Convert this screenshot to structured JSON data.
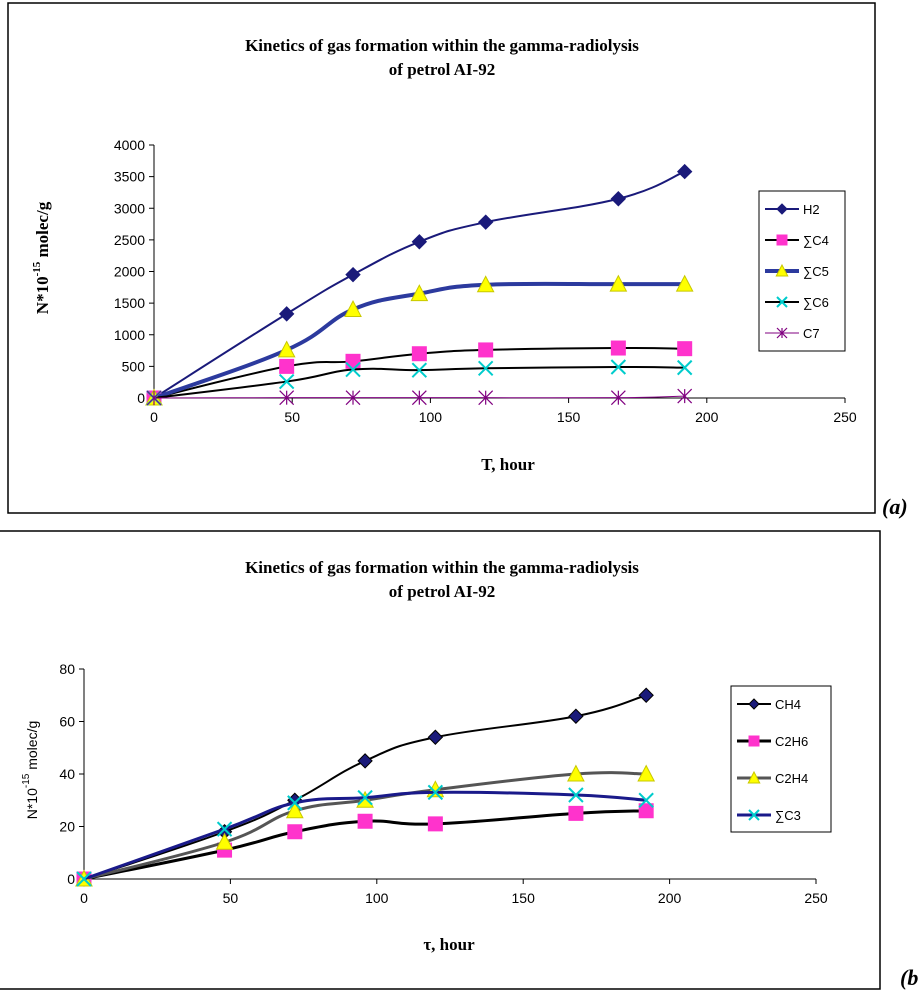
{
  "chart_data": [
    {
      "type": "line",
      "panel_tag": "(a)",
      "title_lines": [
        "Kinetics of gas formation within the gamma-radiolysis",
        "of petrol AI-92"
      ],
      "xlabel": "T, hour",
      "ylabel_prefix": "N*10",
      "ylabel_exp": "-15",
      "ylabel_suffix": " molec/g",
      "xlim": [
        0,
        250
      ],
      "ylim": [
        0,
        4000
      ],
      "xticks": [
        0,
        50,
        100,
        150,
        200,
        250
      ],
      "yticks": [
        0,
        500,
        1000,
        1500,
        2000,
        2500,
        3000,
        3500,
        4000
      ],
      "grid": false,
      "legend_position": "right",
      "series": [
        {
          "name": "H2",
          "color": "#1a1a7a",
          "marker": "diamond",
          "marker_color": "#1a1a7a",
          "width": 2,
          "x": [
            0,
            48,
            72,
            96,
            120,
            168,
            192
          ],
          "y": [
            0,
            1330,
            1950,
            2470,
            2780,
            3150,
            3580
          ]
        },
        {
          "name": "∑C4",
          "color": "#000000",
          "marker": "square",
          "marker_color": "#ff33cc",
          "width": 2,
          "x": [
            0,
            48,
            72,
            96,
            120,
            168,
            192
          ],
          "y": [
            0,
            500,
            580,
            700,
            760,
            790,
            780
          ]
        },
        {
          "name": "∑C5",
          "color": "#2c3a9e",
          "marker": "triangle",
          "marker_color": "#ffff00",
          "width": 4,
          "x": [
            0,
            48,
            72,
            96,
            120,
            168,
            192
          ],
          "y": [
            0,
            760,
            1400,
            1650,
            1790,
            1800,
            1800
          ]
        },
        {
          "name": "∑C6",
          "color": "#000000",
          "marker": "x",
          "marker_color": "#00cccc",
          "width": 2,
          "x": [
            0,
            48,
            72,
            96,
            120,
            168,
            192
          ],
          "y": [
            0,
            260,
            450,
            440,
            470,
            490,
            480
          ]
        },
        {
          "name": "C7",
          "color": "#800080",
          "marker": "star",
          "marker_color": "#800080",
          "width": 1,
          "x": [
            0,
            48,
            72,
            96,
            120,
            168,
            192
          ],
          "y": [
            0,
            5,
            5,
            5,
            5,
            5,
            30
          ]
        }
      ]
    },
    {
      "type": "line",
      "panel_tag": "(b",
      "title_lines": [
        "Kinetics of gas formation within the gamma-radiolysis",
        "of petrol AI-92"
      ],
      "xlabel": "τ, hour",
      "ylabel_prefix": "N*10",
      "ylabel_exp": "-15",
      "ylabel_suffix": " molec/g",
      "xlim": [
        0,
        250
      ],
      "ylim": [
        0,
        80
      ],
      "xticks": [
        0,
        50,
        100,
        150,
        200,
        250
      ],
      "yticks": [
        0,
        20,
        40,
        60,
        80
      ],
      "grid": false,
      "legend_position": "right",
      "series": [
        {
          "name": "CH4",
          "color": "#000000",
          "marker": "diamond",
          "marker_color": "#1a1a7a",
          "width": 2,
          "x": [
            0,
            48,
            72,
            96,
            120,
            168,
            192
          ],
          "y": [
            0,
            18,
            30,
            45,
            54,
            62,
            70
          ]
        },
        {
          "name": "C2H6",
          "color": "#000000",
          "marker": "square",
          "marker_color": "#ff33cc",
          "width": 3,
          "x": [
            0,
            48,
            72,
            96,
            120,
            168,
            192
          ],
          "y": [
            0,
            11,
            18,
            22,
            21,
            25,
            26
          ]
        },
        {
          "name": "C2H4",
          "color": "#555555",
          "marker": "triangle",
          "marker_color": "#ffff00",
          "width": 3,
          "x": [
            0,
            48,
            72,
            96,
            120,
            168,
            192
          ],
          "y": [
            0,
            14,
            26,
            30,
            34,
            40,
            40
          ]
        },
        {
          "name": "∑C3",
          "color": "#1a1a8a",
          "marker": "x",
          "marker_color": "#00cccc",
          "width": 3,
          "x": [
            0,
            48,
            72,
            96,
            120,
            168,
            192
          ],
          "y": [
            0,
            19,
            29,
            31,
            33,
            32,
            30
          ]
        }
      ]
    }
  ]
}
